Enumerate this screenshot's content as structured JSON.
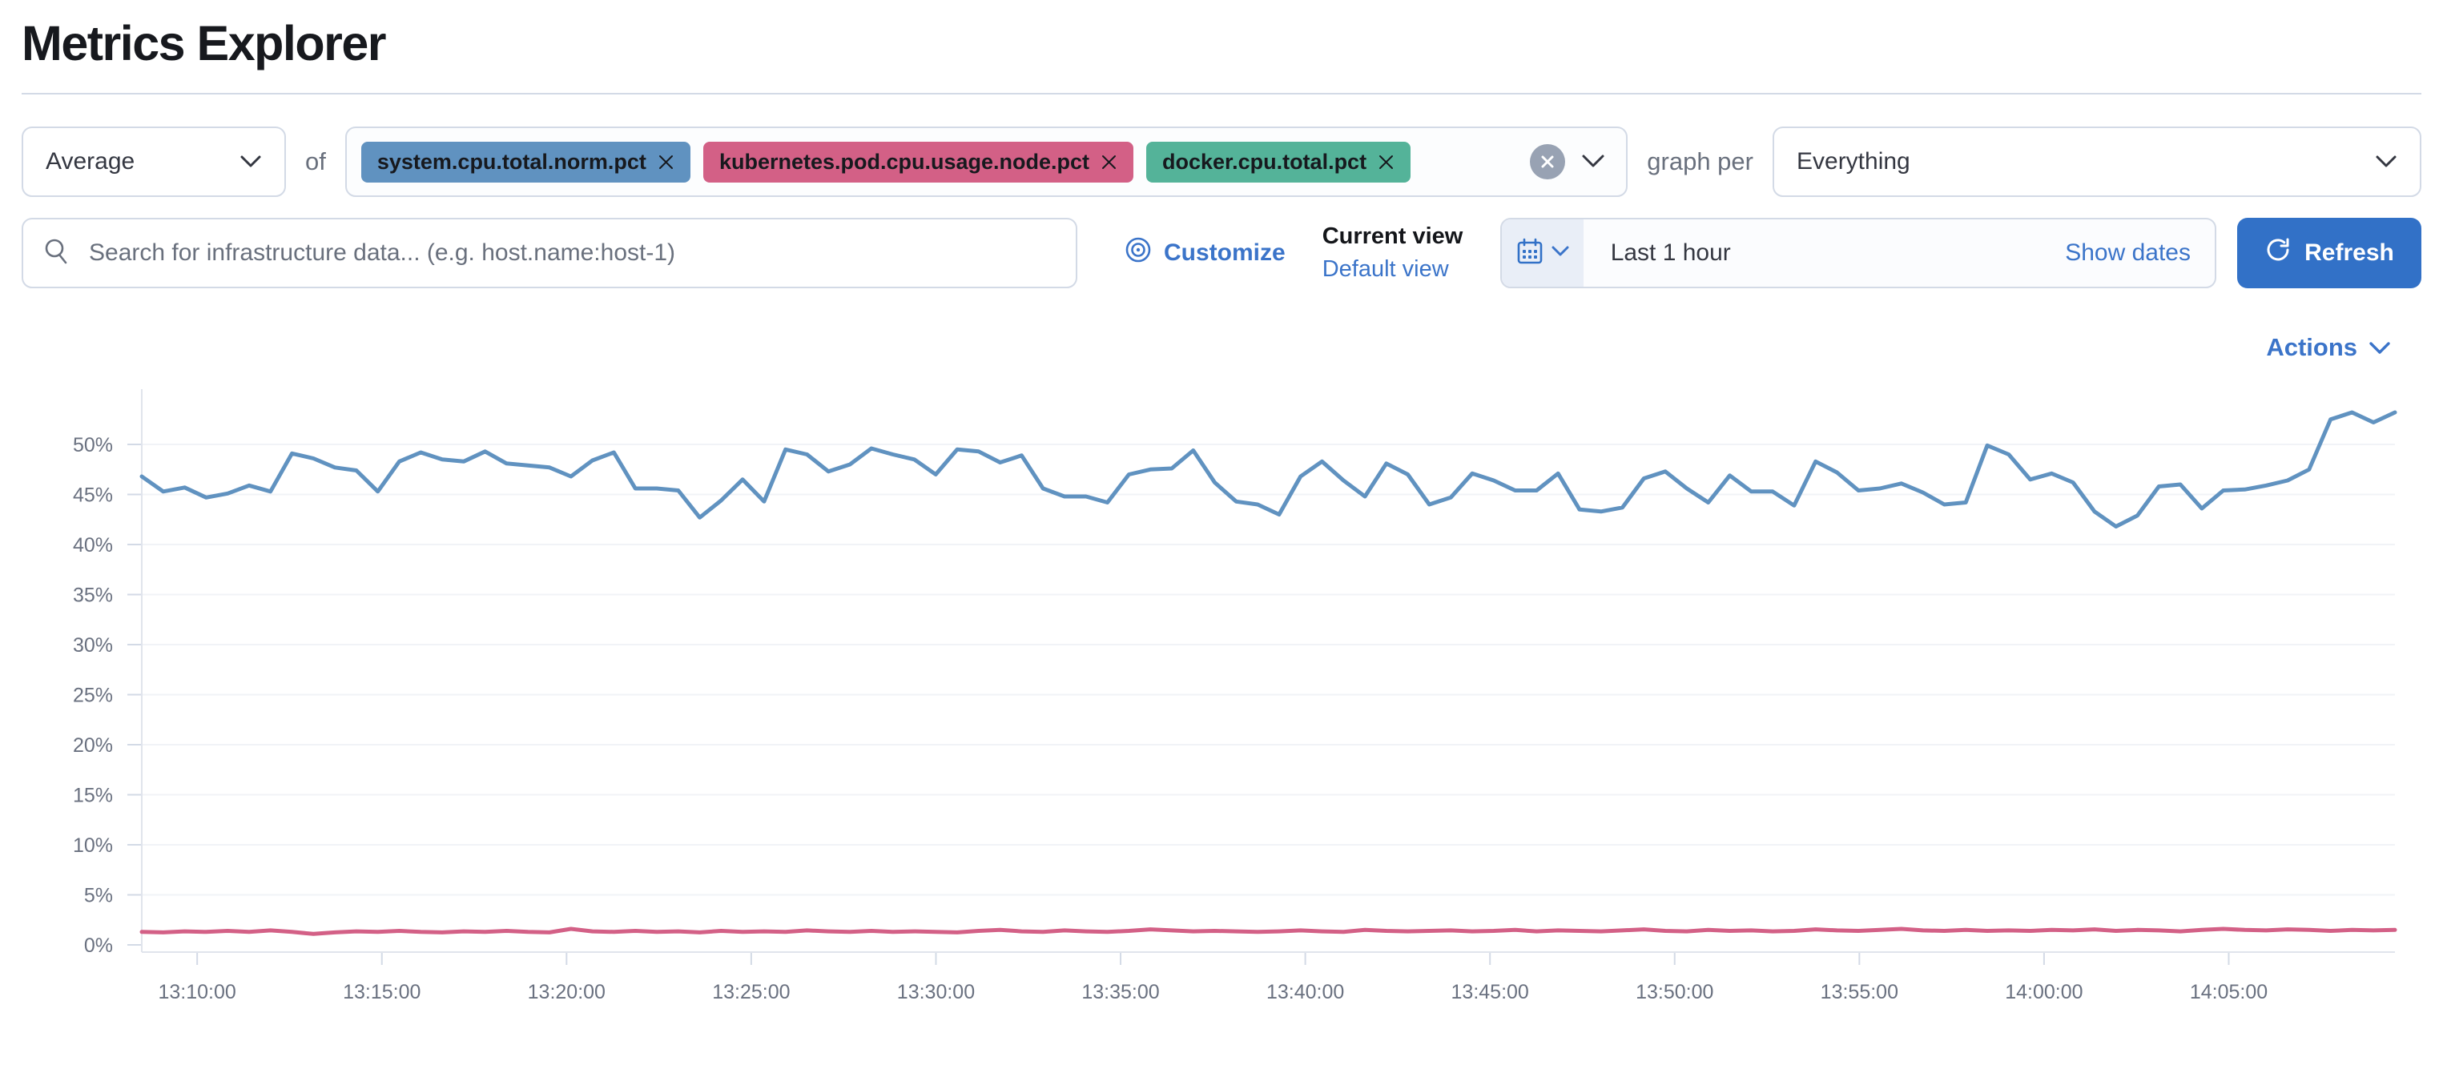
{
  "page": {
    "title": "Metrics Explorer"
  },
  "colors": {
    "primary_button": "#3271c7",
    "link": "#3b74c9",
    "border": "#d3dae6",
    "axis_text": "#6a7180",
    "series_blue": "#6092c0",
    "series_red": "#d36086",
    "badge_green": "#54b399"
  },
  "icons": {
    "aggregation_dropdown": "chevron-down",
    "metric_remove": "cross",
    "metric_clear_all": "cross-in-circle",
    "search": "magnifier",
    "customize": "eye",
    "date": "calendar",
    "refresh": "refresh-arrow",
    "actions_dropdown": "chevron-down"
  },
  "toolbar": {
    "aggregation": {
      "value": "Average"
    },
    "of_label": "of",
    "metrics": [
      {
        "label": "system.cpu.total.norm.pct",
        "color": "#6092c0"
      },
      {
        "label": "kubernetes.pod.cpu.usage.node.pct",
        "color": "#d36086"
      },
      {
        "label": "docker.cpu.total.pct",
        "color": "#54b399"
      }
    ],
    "graph_per_label": "graph per",
    "group_by": {
      "value": "Everything"
    }
  },
  "searchbar": {
    "placeholder": "Search for infrastructure data... (e.g. host.name:host-1)",
    "value": ""
  },
  "view_controls": {
    "customize_label": "Customize",
    "current_view_label": "Current view",
    "default_view_label": "Default view"
  },
  "timepicker": {
    "quick_value": "Last 1 hour",
    "show_dates_label": "Show dates",
    "refresh_label": "Refresh"
  },
  "actions": {
    "label": "Actions"
  },
  "chart_data": {
    "type": "line",
    "title": "",
    "xlabel": "",
    "ylabel": "",
    "grid": true,
    "legend": "none",
    "ylim": [
      0,
      55
    ],
    "x_start": "13:08:30",
    "x_end": "14:09:30",
    "x_tick_labels": [
      "13:10:00",
      "13:15:00",
      "13:20:00",
      "13:25:00",
      "13:30:00",
      "13:35:00",
      "13:40:00",
      "13:45:00",
      "13:50:00",
      "13:55:00",
      "14:00:00",
      "14:05:00"
    ],
    "y_ticks": [
      {
        "label": "0%",
        "value": 0
      },
      {
        "label": "5%",
        "value": 5
      },
      {
        "label": "10%",
        "value": 10
      },
      {
        "label": "15%",
        "value": 15
      },
      {
        "label": "20%",
        "value": 20
      },
      {
        "label": "25%",
        "value": 25
      },
      {
        "label": "30%",
        "value": 30
      },
      {
        "label": "35%",
        "value": 35
      },
      {
        "label": "40%",
        "value": 40
      },
      {
        "label": "45%",
        "value": 45
      },
      {
        "label": "50%",
        "value": 50
      }
    ],
    "series": [
      {
        "name": "system.cpu.total.norm.pct",
        "unit": "%",
        "color": "#6092c0",
        "values": [
          46.8,
          45.3,
          45.7,
          44.7,
          45.1,
          45.9,
          45.3,
          49.1,
          48.6,
          47.7,
          47.4,
          45.3,
          48.3,
          49.2,
          48.5,
          48.3,
          49.3,
          48.1,
          47.9,
          47.7,
          46.8,
          48.4,
          49.2,
          45.6,
          45.6,
          45.4,
          42.7,
          44.4,
          46.5,
          44.3,
          49.5,
          49.0,
          47.3,
          48.0,
          49.6,
          49.0,
          48.5,
          47.0,
          49.5,
          49.3,
          48.2,
          48.9,
          45.6,
          44.8,
          44.8,
          44.2,
          47.0,
          47.5,
          47.6,
          49.4,
          46.2,
          44.3,
          44.0,
          43.0,
          46.8,
          48.3,
          46.4,
          44.8,
          48.1,
          47.0,
          44.0,
          44.7,
          47.1,
          46.4,
          45.4,
          45.4,
          47.1,
          43.5,
          43.3,
          43.7,
          46.6,
          47.3,
          45.6,
          44.2,
          46.9,
          45.3,
          45.3,
          43.9,
          48.3,
          47.2,
          45.4,
          45.6,
          46.1,
          45.2,
          44.0,
          44.2,
          49.9,
          49.0,
          46.5,
          47.1,
          46.2,
          43.3,
          41.8,
          42.9,
          45.8,
          46.0,
          43.6,
          45.4,
          45.5,
          45.9,
          46.4,
          47.5,
          52.5,
          53.2,
          52.2,
          53.2
        ]
      },
      {
        "name": "kubernetes.pod.cpu.usage.node.pct",
        "unit": "%",
        "color": "#d36086",
        "values": [
          1.3,
          1.25,
          1.35,
          1.3,
          1.4,
          1.3,
          1.45,
          1.3,
          1.1,
          1.25,
          1.35,
          1.3,
          1.4,
          1.3,
          1.25,
          1.35,
          1.3,
          1.4,
          1.3,
          1.25,
          1.6,
          1.35,
          1.3,
          1.4,
          1.3,
          1.35,
          1.25,
          1.4,
          1.3,
          1.35,
          1.3,
          1.45,
          1.35,
          1.3,
          1.4,
          1.3,
          1.35,
          1.3,
          1.25,
          1.4,
          1.5,
          1.35,
          1.3,
          1.45,
          1.35,
          1.3,
          1.4,
          1.55,
          1.45,
          1.35,
          1.4,
          1.35,
          1.3,
          1.35,
          1.45,
          1.35,
          1.3,
          1.5,
          1.4,
          1.35,
          1.4,
          1.45,
          1.35,
          1.4,
          1.5,
          1.35,
          1.45,
          1.4,
          1.35,
          1.45,
          1.55,
          1.4,
          1.35,
          1.5,
          1.4,
          1.45,
          1.35,
          1.4,
          1.55,
          1.45,
          1.4,
          1.5,
          1.6,
          1.45,
          1.4,
          1.5,
          1.4,
          1.45,
          1.4,
          1.5,
          1.45,
          1.55,
          1.4,
          1.5,
          1.45,
          1.35,
          1.5,
          1.6,
          1.5,
          1.45,
          1.55,
          1.5,
          1.4,
          1.5,
          1.45,
          1.5
        ]
      }
    ]
  }
}
